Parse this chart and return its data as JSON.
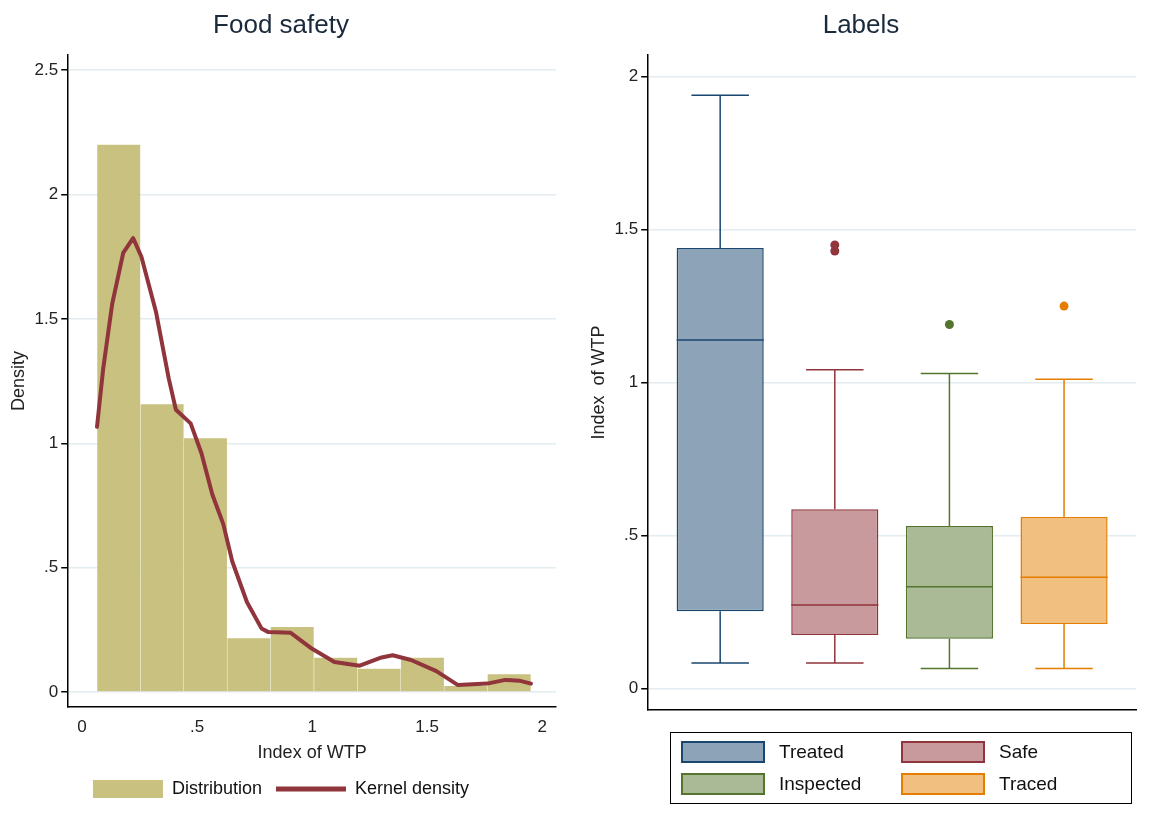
{
  "chart_data": [
    {
      "type": "histogram",
      "title": "Food safety",
      "xlabel": "Index of WTP",
      "ylabel": "Density",
      "bins": [
        0.065,
        0.254,
        0.442,
        0.631,
        0.819,
        1.008,
        1.197,
        1.385,
        1.574,
        1.762,
        1.951
      ],
      "series": [
        {
          "name": "Distribution",
          "type": "histogram",
          "color": "#c9c17f",
          "values": [
            2.2,
            1.157,
            1.02,
            0.216,
            0.262,
            0.138,
            0.094,
            0.138,
            0.024,
            0.072
          ]
        },
        {
          "name": "Kernel density",
          "type": "line",
          "color": "#90353b",
          "x": [
            0.065,
            0.092,
            0.131,
            0.179,
            0.222,
            0.258,
            0.321,
            0.377,
            0.408,
            0.472,
            0.519,
            0.566,
            0.614,
            0.653,
            0.717,
            0.78,
            0.81,
            0.907,
            1.0,
            1.097,
            1.207,
            1.302,
            1.35,
            1.43,
            1.54,
            1.634,
            1.761,
            1.84,
            1.9,
            1.951
          ],
          "values": [
            1.066,
            1.3,
            1.56,
            1.765,
            1.825,
            1.75,
            1.53,
            1.26,
            1.135,
            1.08,
            0.96,
            0.795,
            0.675,
            0.525,
            0.361,
            0.256,
            0.241,
            0.238,
            0.174,
            0.121,
            0.106,
            0.139,
            0.148,
            0.129,
            0.084,
            0.028,
            0.034,
            0.049,
            0.046,
            0.034
          ]
        }
      ],
      "xlim": [
        -0.06,
        2.06
      ],
      "xticks": [
        0,
        {
          "value": 0.5,
          "label": ".5"
        },
        1,
        1.5,
        2
      ],
      "ylim": [
        -0.06,
        2.56
      ],
      "yticks": [
        0,
        {
          "value": 0.5,
          "label": ".5"
        },
        1,
        1.5,
        2,
        2.5
      ],
      "grid": "y",
      "legend": "bottom"
    },
    {
      "type": "box",
      "title": "Labels",
      "ylabel": "Index  of WTP",
      "categories": [
        null
      ],
      "series": [
        {
          "name": "Treated",
          "color": "#1a476f",
          "boxes": [
            {
              "low": 0.084,
              "q1": 0.253,
              "median": 1.139,
              "q3": 1.44,
              "high": 1.939
            }
          ]
        },
        {
          "name": "Safe",
          "color": "#90353b",
          "boxes": [
            {
              "low": 0.084,
              "q1": 0.175,
              "median": 0.273,
              "q3": 0.586,
              "high": 1.042,
              "outliers": [
                1.43,
                1.45
              ]
            }
          ]
        },
        {
          "name": "Inspected",
          "color": "#55752f",
          "boxes": [
            {
              "low": 0.066,
              "q1": 0.163,
              "median": 0.333,
              "q3": 0.531,
              "high": 1.03,
              "outliers": [
                1.19
              ]
            }
          ]
        },
        {
          "name": "Traced",
          "color": "#e37e00",
          "boxes": [
            {
              "low": 0.066,
              "q1": 0.211,
              "median": 0.364,
              "q3": 0.561,
              "high": 1.011,
              "outliers": [
                1.25
              ]
            }
          ]
        }
      ],
      "ylim": [
        -0.07,
        2.07
      ],
      "yticks": [
        0,
        {
          "value": 0.5,
          "label": ".5"
        },
        1,
        1.5,
        2
      ],
      "grid": "y",
      "legend": "bottom",
      "tick_labels": "y"
    }
  ]
}
